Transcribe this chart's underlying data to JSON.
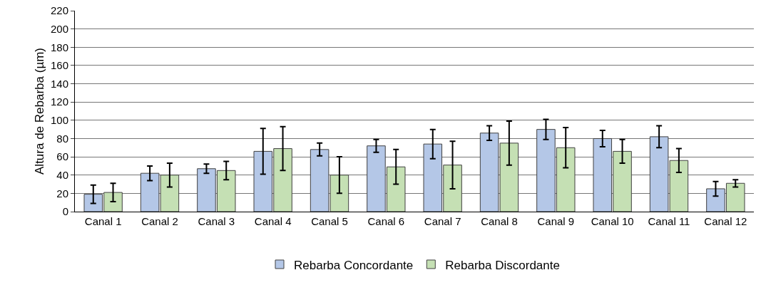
{
  "chart_data": {
    "type": "bar",
    "ylabel": "Altura de Rebarba (µm)",
    "categories": [
      "Canal 1",
      "Canal 2",
      "Canal 3",
      "Canal 4",
      "Canal 5",
      "Canal 6",
      "Canal 7",
      "Canal 8",
      "Canal 9",
      "Canal 10",
      "Canal 11",
      "Canal 12"
    ],
    "series": [
      {
        "name": "Rebarba Concordante",
        "color": "#b4c7e7",
        "values": [
          19,
          42,
          47,
          66,
          68,
          72,
          74,
          86,
          90,
          80,
          82,
          25
        ],
        "errors": [
          10,
          8,
          5,
          25,
          7,
          7,
          16,
          8,
          11,
          9,
          12,
          8
        ]
      },
      {
        "name": "Rebarba Discordante",
        "color": "#c5e0b4",
        "values": [
          21,
          40,
          45,
          69,
          40,
          49,
          51,
          75,
          70,
          66,
          56,
          31
        ],
        "errors": [
          10,
          13,
          10,
          24,
          20,
          19,
          26,
          24,
          22,
          13,
          13,
          4
        ]
      }
    ],
    "ylim": [
      0,
      220
    ],
    "yticks": [
      0,
      20,
      40,
      60,
      80,
      100,
      120,
      140,
      160,
      180,
      200,
      220
    ],
    "grid": "y",
    "legend": "bottom"
  }
}
